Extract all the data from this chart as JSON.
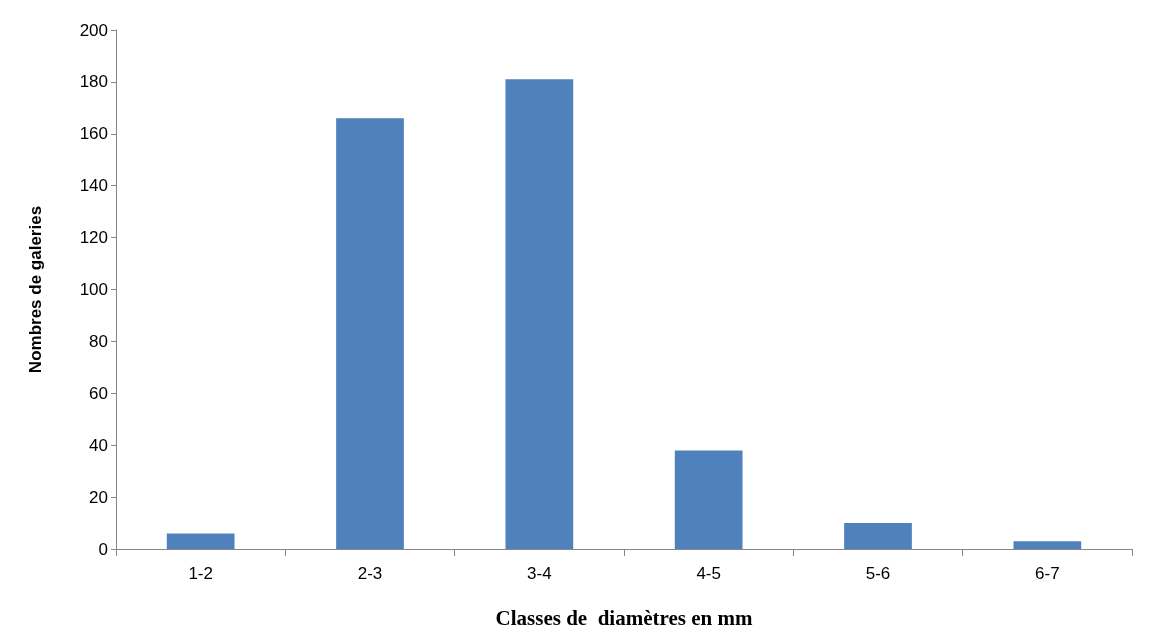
{
  "chart_data": {
    "type": "bar",
    "xlabel": "Classes de  diamètres en mm",
    "ylabel": "Nombres de galeries",
    "categories": [
      "1-2",
      "2-3",
      "3-4",
      "4-5",
      "5-6",
      "6-7"
    ],
    "values": [
      6,
      166,
      181,
      38,
      10,
      3
    ],
    "color": "#4f81bd",
    "ylim": [
      0,
      200
    ],
    "yticks": [
      0,
      20,
      40,
      60,
      80,
      100,
      120,
      140,
      160,
      180,
      200
    ],
    "grid": false
  }
}
